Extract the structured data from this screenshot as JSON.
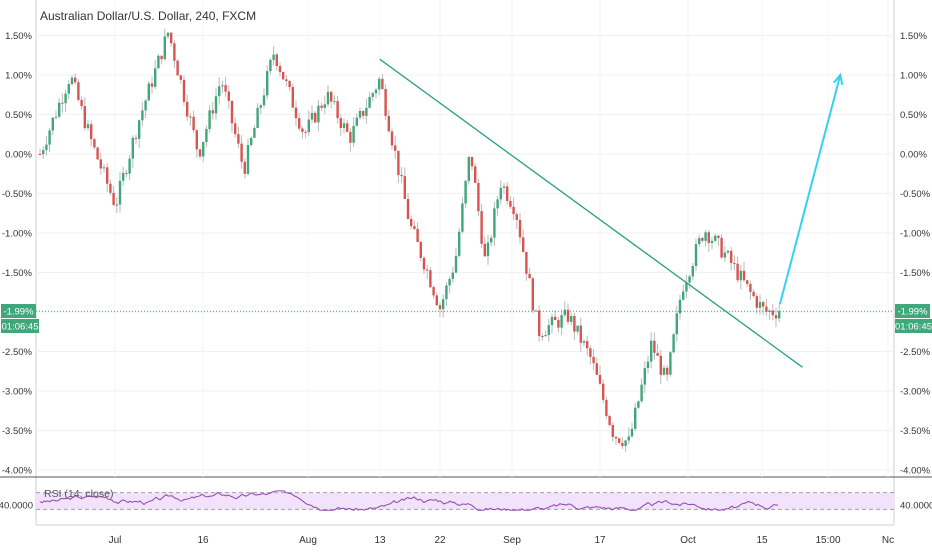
{
  "header": {
    "title": "Australian Dollar/U.S. Dollar, 240, FXCM"
  },
  "colors": {
    "up": "#3fa77a",
    "down": "#d9534f",
    "wick": "#b9b9b9",
    "trendline": "#27a080",
    "arrow": "#32d2f0",
    "rsi_line": "#8e44ad",
    "rsi_band": "#f2e2fb",
    "price_line": "#3fa77a",
    "axis_text": "#333333"
  },
  "price_axis": {
    "ticks": [
      "1.50%",
      "1.00%",
      "0.50%",
      "0.00%",
      "-0.50%",
      "-1.00%",
      "-1.50%",
      "-2.00%",
      "-2.50%",
      "-3.00%",
      "-3.50%",
      "-4.00%"
    ],
    "current_value": "-1.99%",
    "countdown": "01:06:45"
  },
  "rsi": {
    "label": "RSI (14, close)",
    "level_label": "40.0000"
  },
  "time_axis": {
    "ticks": [
      "Jul",
      "16",
      "Aug",
      "13",
      "22",
      "Sep",
      "17",
      "Oct",
      "15",
      "15:00",
      "Nc"
    ]
  },
  "chart_data": {
    "type": "candlestick",
    "title": "Australian Dollar/U.S. Dollar, 240, FXCM",
    "y_unit": "% change",
    "ylim": [
      -4.05,
      1.75
    ],
    "close_path": [
      {
        "x": "Jun 25",
        "y": 0.0
      },
      {
        "x": "Jun 29",
        "y": 1.0
      },
      {
        "x": "Jul 02",
        "y": 0.1
      },
      {
        "x": "Jul 05",
        "y": -0.65
      },
      {
        "x": "Jul 08",
        "y": 0.4
      },
      {
        "x": "Jul 12",
        "y": 1.55
      },
      {
        "x": "Jul 16",
        "y": 0.0
      },
      {
        "x": "Jul 19",
        "y": 0.95
      },
      {
        "x": "Jul 22",
        "y": -0.2
      },
      {
        "x": "Jul 26",
        "y": 1.3
      },
      {
        "x": "Jul 30",
        "y": 0.25
      },
      {
        "x": "Aug 02",
        "y": 0.75
      },
      {
        "x": "Aug 05",
        "y": 0.2
      },
      {
        "x": "Aug 09",
        "y": 0.95
      },
      {
        "x": "Aug 13",
        "y": -0.9
      },
      {
        "x": "Aug 15",
        "y": -1.4
      },
      {
        "x": "Aug 17",
        "y": -1.95
      },
      {
        "x": "Aug 19",
        "y": -1.35
      },
      {
        "x": "Aug 21",
        "y": 0.05
      },
      {
        "x": "Aug 23",
        "y": -1.4
      },
      {
        "x": "Aug 25",
        "y": -0.35
      },
      {
        "x": "Aug 27",
        "y": -0.7
      },
      {
        "x": "Aug 30",
        "y": -2.25
      },
      {
        "x": "Sep 03",
        "y": -2.05
      },
      {
        "x": "Sep 06",
        "y": -2.6
      },
      {
        "x": "Sep 09",
        "y": -3.55
      },
      {
        "x": "Sep 11",
        "y": -3.65
      },
      {
        "x": "Sep 14",
        "y": -2.4
      },
      {
        "x": "Sep 16",
        "y": -2.9
      },
      {
        "x": "Sep 18",
        "y": -1.7
      },
      {
        "x": "Sep 21",
        "y": -0.95
      },
      {
        "x": "Sep 24",
        "y": -1.3
      },
      {
        "x": "Sep 27",
        "y": -1.75
      },
      {
        "x": "Sep 29",
        "y": -2.0
      },
      {
        "x": "Oct 01",
        "y": -1.99
      }
    ],
    "trendline": {
      "from": {
        "x": "Aug 09",
        "y": 1.2
      },
      "to": {
        "x": "Oct 04",
        "y": -2.7
      }
    },
    "projection_arrow": {
      "from": {
        "x": "Oct 01",
        "y": -1.9
      },
      "to": {
        "x": "Oct 09",
        "y": 1.0
      }
    },
    "last_value": -1.99,
    "rsi": {
      "period": 14,
      "level": 40,
      "band": [
        30,
        70
      ]
    }
  }
}
